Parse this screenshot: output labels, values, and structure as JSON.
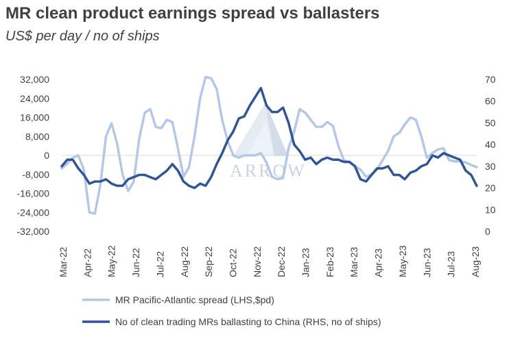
{
  "header": {
    "title": "MR clean product earnings spread vs ballasters",
    "subtitle": "US$ per day / no of ships"
  },
  "watermark": {
    "text": "ARROW"
  },
  "colors": {
    "spread": "#b4c7e7",
    "ships": "#2f5597",
    "zero_line": "#d9d9d9",
    "text": "#404040"
  },
  "chart_data": {
    "type": "line",
    "x_labels": [
      "Mar-22",
      "Apr-22",
      "May-22",
      "Jun-22",
      "Jul-22",
      "Aug-22",
      "Sep-22",
      "Oct-22",
      "Nov-22",
      "Dec-22",
      "Jan-23",
      "Feb-23",
      "Mar-23",
      "Apr-23",
      "May-23",
      "Jun-23",
      "Jul-23",
      "Aug-23"
    ],
    "y_left": {
      "ylim": [
        -32000,
        32000
      ],
      "ticks": [
        "32,000",
        "24,000",
        "16,000",
        "8,000",
        "0",
        "-8,000",
        "-16,000",
        "-24,000",
        "-32,000"
      ]
    },
    "y_right": {
      "ylim": [
        0,
        70
      ],
      "ticks": [
        "70",
        "60",
        "50",
        "40",
        "30",
        "20",
        "10",
        "0"
      ]
    },
    "series": [
      {
        "name": "MR Pacific-Atlantic spread (LHS,$pd)",
        "axis": "left",
        "values": [
          -5500,
          -3500,
          -1000,
          0,
          -6000,
          -24000,
          -24500,
          -12000,
          8000,
          13500,
          5000,
          -8000,
          -15000,
          -11000,
          7000,
          18000,
          19500,
          12000,
          11500,
          15000,
          14000,
          3000,
          -9000,
          -5000,
          8000,
          24000,
          33000,
          32500,
          28000,
          15000,
          6000,
          0,
          -1000,
          0,
          0,
          0,
          1000,
          -3000,
          -9000,
          -10000,
          -9500,
          3000,
          10000,
          19500,
          18000,
          15000,
          12000,
          12000,
          14000,
          12500,
          4000,
          -2000,
          -3000,
          -4500,
          -6000,
          -9000,
          -8000,
          -6000,
          -2000,
          2000,
          8000,
          9500,
          13000,
          16000,
          15000,
          8000,
          -1000,
          1000,
          2500,
          3000,
          -2000,
          -2500,
          -2500,
          -3000,
          -4000,
          -5000
        ],
        "legend": "MR Pacific-Atlantic spread (LHS,$pd)"
      },
      {
        "name": "No of clean trading MRs ballasting to China (RHS, no of ships)",
        "axis": "right",
        "values": [
          30,
          33,
          33,
          29,
          26,
          22,
          23,
          23,
          24,
          22,
          21,
          21,
          24,
          25,
          26,
          26,
          25,
          24,
          26,
          28,
          31,
          28,
          23,
          21,
          20,
          22,
          21,
          25,
          31,
          36,
          42,
          46,
          52,
          53,
          58,
          62,
          66,
          58,
          55,
          55,
          57,
          50,
          40,
          37,
          33,
          34,
          31,
          33,
          34,
          33,
          33,
          32,
          32,
          30,
          24,
          23,
          26,
          29,
          29,
          30,
          26,
          26,
          24,
          27,
          28,
          30,
          31,
          35,
          34,
          36,
          35,
          34,
          33,
          28,
          26,
          21
        ],
        "legend": "No of clean trading MRs ballasting to China (RHS, no of ships)"
      }
    ],
    "legend_position": "bottom",
    "grid": false
  }
}
